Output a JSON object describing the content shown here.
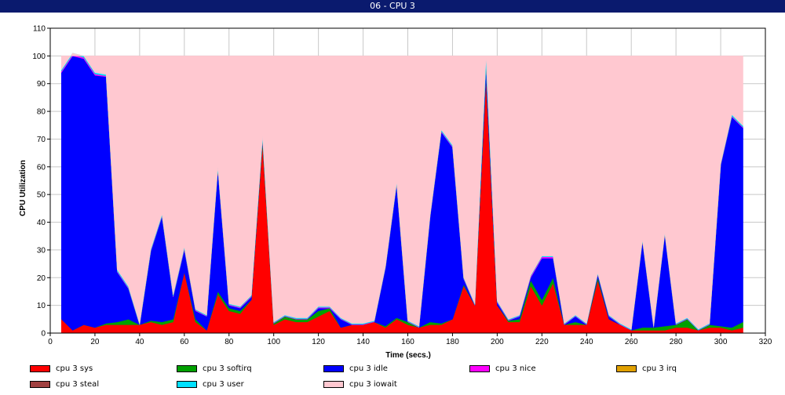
{
  "window": {
    "title": "06 - CPU 3"
  },
  "chart_data": {
    "type": "area",
    "stacked": true,
    "title": "",
    "xlabel": "Time (secs.)",
    "ylabel": "CPU Utilization",
    "xlim": [
      0,
      320
    ],
    "ylim": [
      0,
      110
    ],
    "xticks": [
      0,
      20,
      40,
      60,
      80,
      100,
      120,
      140,
      160,
      180,
      200,
      220,
      240,
      260,
      280,
      300,
      320
    ],
    "yticks": [
      0,
      10,
      20,
      30,
      40,
      50,
      60,
      70,
      80,
      90,
      100,
      110
    ],
    "grid": true,
    "legend_position": "bottom",
    "x": [
      5,
      10,
      15,
      20,
      25,
      30,
      35,
      40,
      45,
      50,
      55,
      60,
      65,
      70,
      75,
      80,
      85,
      90,
      95,
      100,
      105,
      110,
      115,
      120,
      125,
      130,
      135,
      140,
      145,
      150,
      155,
      160,
      165,
      170,
      175,
      180,
      185,
      190,
      195,
      200,
      205,
      210,
      215,
      220,
      225,
      230,
      235,
      240,
      245,
      250,
      255,
      260,
      265,
      270,
      275,
      280,
      285,
      290,
      295,
      300,
      305,
      310
    ],
    "series": [
      {
        "name": "cpu 3 sys",
        "color": "#ff0000",
        "values": [
          5,
          1,
          3,
          2,
          3,
          3,
          3,
          3,
          4,
          3,
          4,
          22,
          4,
          1,
          14,
          8,
          7,
          12,
          68,
          3,
          5,
          4,
          4,
          6,
          8,
          2,
          3,
          3,
          4,
          2,
          5,
          3,
          2,
          3,
          3,
          5,
          17,
          10,
          92,
          10,
          4,
          4,
          17,
          10,
          18,
          3,
          3,
          3,
          19,
          5,
          3,
          1,
          1,
          1,
          1,
          2,
          2,
          1,
          2,
          2,
          1,
          2
        ]
      },
      {
        "name": "cpu 3 softirq",
        "color": "#00a000",
        "values": [
          0,
          0,
          0,
          0,
          0.5,
          1,
          2,
          0,
          0.5,
          1,
          1,
          0,
          1,
          0,
          1,
          1,
          1,
          0,
          1,
          0.5,
          1,
          1,
          1,
          2,
          1,
          0,
          0,
          0,
          0,
          0.5,
          0.5,
          1,
          0,
          1,
          0.5,
          0,
          0.5,
          0,
          0,
          0,
          0.5,
          1,
          2,
          2,
          2,
          0,
          1,
          0,
          1,
          0,
          0,
          0,
          1,
          1,
          1.5,
          1,
          3,
          0,
          1,
          0.5,
          1,
          2
        ]
      },
      {
        "name": "cpu 3 idle",
        "color": "#0000ff",
        "values": [
          89,
          99,
          96,
          91,
          89,
          18,
          11,
          0,
          25,
          38,
          8,
          8,
          3,
          5,
          44,
          1,
          1,
          1,
          1,
          0,
          0,
          0,
          0,
          1,
          0,
          3,
          0,
          0,
          0,
          21,
          48,
          0,
          0,
          38,
          69,
          62,
          2,
          0,
          4,
          1,
          0,
          1,
          1,
          15,
          7,
          0,
          2,
          0,
          1,
          1,
          0,
          0,
          31,
          0,
          33,
          0,
          0,
          0,
          0,
          58,
          76,
          70
        ]
      },
      {
        "name": "cpu 3 nice",
        "color": "#ff00ff",
        "values": [
          0.5,
          0.5,
          0.5,
          0.5,
          0.3,
          0.3,
          0.3,
          0,
          0.3,
          0.3,
          0.3,
          0.5,
          0.3,
          0.2,
          0.3,
          0.3,
          0.3,
          0.3,
          0.3,
          0.2,
          0.2,
          0.2,
          0.2,
          0.3,
          0.3,
          0.2,
          0.2,
          0.2,
          0.2,
          0.3,
          0.3,
          0.2,
          0.2,
          0.3,
          0.3,
          0.3,
          0.3,
          0.2,
          0.5,
          0.3,
          0.2,
          0.2,
          0.5,
          0.5,
          0.5,
          0.2,
          0.2,
          0.2,
          0.3,
          0.2,
          0.2,
          0.1,
          0.3,
          0.2,
          0.3,
          0.2,
          0.2,
          0.1,
          0.2,
          0.3,
          0.3,
          0.3
        ]
      },
      {
        "name": "cpu 3 irq",
        "color": "#e0a000",
        "values": [
          0,
          0,
          0,
          0,
          0,
          0,
          0,
          0,
          0,
          0,
          0,
          0,
          0,
          0,
          0,
          0,
          0,
          0,
          0,
          0,
          0,
          0,
          0,
          0,
          0,
          0,
          0,
          0,
          0,
          0,
          0,
          0,
          0,
          0,
          0,
          0,
          0,
          0,
          0,
          0,
          0,
          0,
          0,
          0,
          0,
          0,
          0,
          0,
          0,
          0,
          0,
          0,
          0,
          0,
          0,
          0,
          0,
          0,
          0,
          0,
          0,
          0
        ]
      },
      {
        "name": "cpu 3 steal",
        "color": "#a04040",
        "values": [
          0,
          0,
          0,
          0,
          0,
          0,
          0,
          0,
          0,
          0,
          0,
          0,
          0,
          0,
          0,
          0,
          0,
          0,
          0,
          0,
          0,
          0,
          0,
          0,
          0,
          0,
          0,
          0,
          0,
          0,
          0,
          0,
          0,
          0,
          0,
          0,
          0,
          0,
          0,
          0,
          0,
          0,
          0,
          0,
          0,
          0,
          0,
          0,
          0,
          0,
          0,
          0,
          0,
          0,
          0,
          0,
          0,
          0,
          0,
          0,
          0,
          0
        ]
      },
      {
        "name": "cpu 3 user",
        "color": "#00e0ff",
        "values": [
          0.5,
          0.5,
          0.5,
          0.5,
          0.5,
          0.5,
          0.5,
          0.3,
          0.5,
          0.5,
          0.5,
          0.5,
          0.3,
          0.3,
          0.5,
          0.3,
          0.3,
          0.3,
          0.7,
          0.3,
          0.3,
          0.3,
          0.3,
          0.3,
          0.3,
          0.3,
          0.3,
          0.3,
          0.3,
          0.3,
          0.5,
          0.3,
          0.3,
          0.3,
          0.5,
          0.5,
          0.3,
          0.3,
          3,
          0.3,
          0.3,
          0.3,
          0.3,
          0.3,
          0.3,
          0.3,
          0.3,
          0.3,
          0.3,
          0.3,
          0.3,
          0.3,
          0.3,
          0.3,
          0.3,
          0.3,
          0.3,
          0.3,
          0.3,
          0.3,
          0.5,
          0.5
        ]
      },
      {
        "name": "cpu 3 iowait",
        "color": "#ffc8d0",
        "fill_to": 100
      }
    ]
  }
}
